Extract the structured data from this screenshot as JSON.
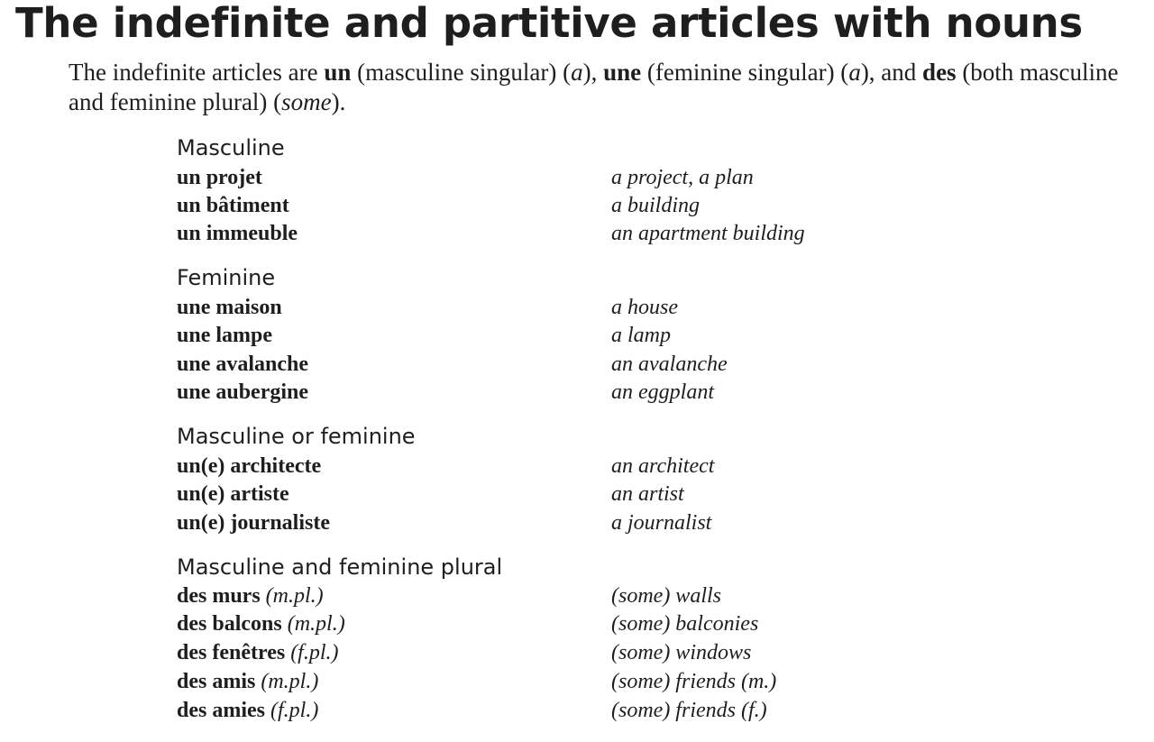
{
  "title": "The indefinite and partitive articles with nouns",
  "intro": {
    "t1": "The indefinite articles are ",
    "b1": "un",
    "t2": " (masculine singular) (",
    "i1": "a",
    "t3": "), ",
    "b2": "une",
    "t4": " (feminine singular) (",
    "i2": "a",
    "t5": "), and ",
    "b3": "des",
    "t6": " (both masculine and feminine plural) (",
    "i3": "some",
    "t7": ")."
  },
  "groups": [
    {
      "title": "Masculine",
      "rows": [
        {
          "fr": "un projet",
          "en": "a project, a plan"
        },
        {
          "fr": "un bâtiment",
          "en": "a building"
        },
        {
          "fr": "un immeuble",
          "en": "an apartment building"
        }
      ]
    },
    {
      "title": "Feminine",
      "rows": [
        {
          "fr": "une maison",
          "en": "a house"
        },
        {
          "fr": "une lampe",
          "en": "a lamp"
        },
        {
          "fr": "une avalanche",
          "en": "an avalanche"
        },
        {
          "fr": "une aubergine",
          "en": "an eggplant"
        }
      ]
    },
    {
      "title": "Masculine or feminine",
      "rows": [
        {
          "fr": "un(e) architecte",
          "en": "an architect"
        },
        {
          "fr": "un(e) artiste",
          "en": "an artist"
        },
        {
          "fr": "un(e) journaliste",
          "en": "a journalist"
        }
      ]
    },
    {
      "title": "Masculine and feminine plural",
      "rows": [
        {
          "fr": "des murs",
          "note": "(m.pl.)",
          "en": "(some) walls"
        },
        {
          "fr": "des balcons",
          "note": "(m.pl.)",
          "en": "(some) balconies"
        },
        {
          "fr": "des fenêtres",
          "note": "(f.pl.)",
          "en": "(some) windows"
        },
        {
          "fr": "des amis",
          "note": "(m.pl.)",
          "en": "(some) friends (m.)"
        },
        {
          "fr": "des amies",
          "note": "(f.pl.)",
          "en": "(some) friends (f.)"
        }
      ]
    }
  ]
}
